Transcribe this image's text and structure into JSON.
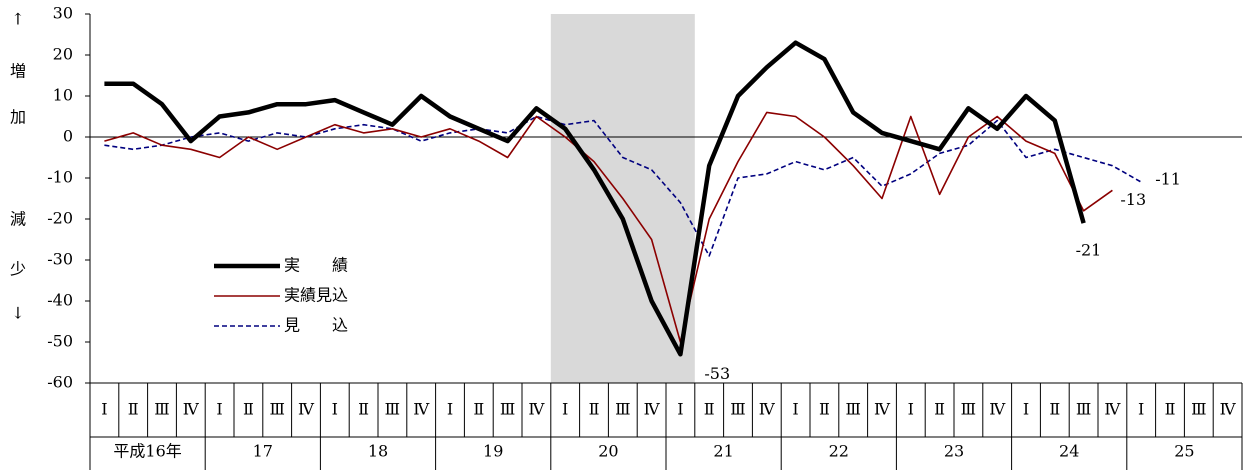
{
  "chart_data": {
    "type": "line",
    "ylabel_chars": [
      "↑",
      "増",
      "加",
      "減",
      "少",
      "↓"
    ],
    "categories": [
      "Ⅰ",
      "Ⅱ",
      "Ⅲ",
      "Ⅳ",
      "Ⅰ",
      "Ⅱ",
      "Ⅲ",
      "Ⅳ",
      "Ⅰ",
      "Ⅱ",
      "Ⅲ",
      "Ⅳ",
      "Ⅰ",
      "Ⅱ",
      "Ⅲ",
      "Ⅳ",
      "Ⅰ",
      "Ⅱ",
      "Ⅲ",
      "Ⅳ",
      "Ⅰ",
      "Ⅱ",
      "Ⅲ",
      "Ⅳ",
      "Ⅰ",
      "Ⅱ",
      "Ⅲ",
      "Ⅳ",
      "Ⅰ",
      "Ⅱ",
      "Ⅲ",
      "Ⅳ",
      "Ⅰ",
      "Ⅱ",
      "Ⅲ",
      "Ⅳ",
      "Ⅰ",
      "Ⅱ",
      "Ⅲ",
      "Ⅳ"
    ],
    "years": [
      "平成16年",
      "17",
      "18",
      "19",
      "20",
      "21",
      "22",
      "23",
      "24",
      "25"
    ],
    "shade": [
      16,
      20
    ],
    "ylim": [
      -60,
      30
    ],
    "yticks": [
      30,
      20,
      10,
      0,
      -10,
      -20,
      -30,
      -40,
      -50,
      -60
    ],
    "series": [
      {
        "name": "実　　績",
        "color": "#000000",
        "width": 4.5,
        "dash": false,
        "values": [
          13,
          13,
          8,
          -1,
          5,
          6,
          8,
          8,
          9,
          6,
          3,
          10,
          5,
          2,
          -1,
          7,
          2,
          -8,
          -20,
          -40,
          -53,
          -7,
          10,
          17,
          23,
          19,
          6,
          1,
          -1,
          -3,
          7,
          2,
          10,
          4,
          -21,
          null,
          null,
          null,
          null,
          null
        ]
      },
      {
        "name": "実績見込",
        "color": "#8b0000",
        "width": 1.6,
        "dash": false,
        "values": [
          -1,
          1,
          -2,
          -3,
          -5,
          0,
          -3,
          0,
          3,
          1,
          2,
          0,
          2,
          -1,
          -5,
          5,
          0,
          -6,
          -15,
          -25,
          -50,
          -20,
          -6,
          6,
          5,
          0,
          -7,
          -15,
          5,
          -14,
          0,
          5,
          -1,
          -4,
          -18,
          -13,
          null,
          null,
          null,
          null
        ]
      },
      {
        "name": "見　　込",
        "color": "#00007f",
        "width": 1.6,
        "dash": true,
        "values": [
          -2,
          -3,
          -2,
          0,
          1,
          -1,
          1,
          0,
          2,
          3,
          2,
          -1,
          1,
          2,
          1,
          5,
          3,
          4,
          -5,
          -8,
          -16,
          -29,
          -10,
          -9,
          -6,
          -8,
          -5,
          -12,
          -9,
          -4,
          -2,
          4,
          -5,
          -3,
          -5,
          -7,
          -11,
          null,
          null,
          null
        ]
      }
    ]
  }
}
